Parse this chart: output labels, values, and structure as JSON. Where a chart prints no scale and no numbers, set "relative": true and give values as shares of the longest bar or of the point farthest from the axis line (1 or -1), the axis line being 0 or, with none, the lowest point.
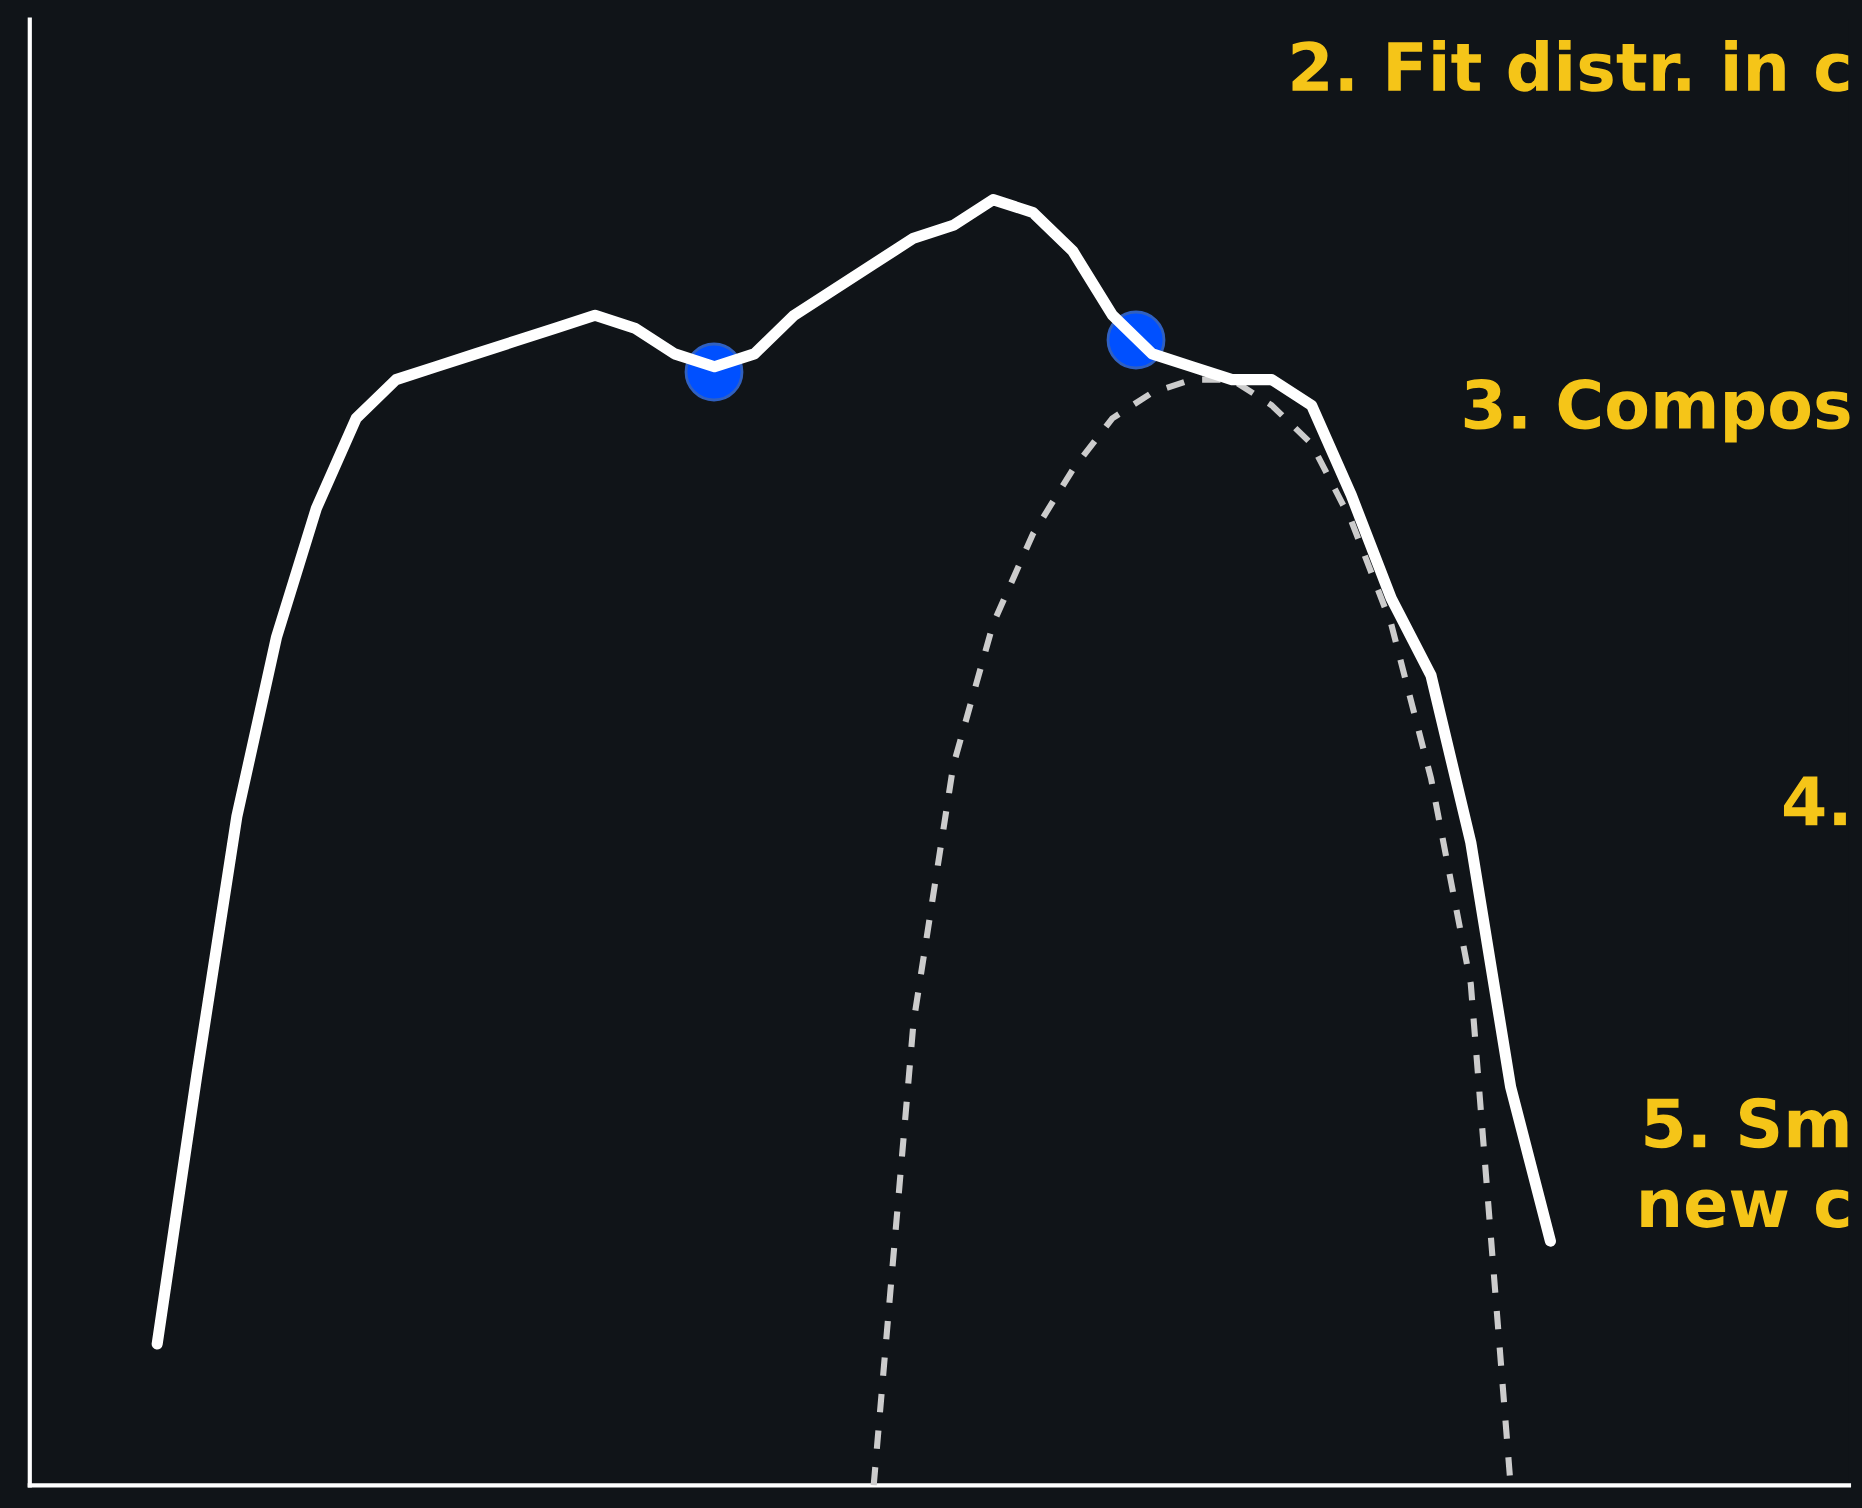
{
  "chart_data": {
    "type": "line",
    "relative": true,
    "annotations": [
      "2. Fit distr. in c",
      "3. Compos",
      "4.",
      "5. Sm\nnew c"
    ],
    "categories": [
      null,
      null,
      null,
      null,
      null,
      null,
      null,
      null,
      null,
      null,
      null,
      null,
      null,
      null,
      null,
      null,
      null,
      null,
      null,
      null,
      null,
      null,
      null,
      null,
      null,
      null,
      null,
      null,
      null,
      null,
      null,
      null,
      null,
      null,
      null,
      null
    ],
    "series": [
      {
        "color": "#ffffff",
        "line_style": "solid",
        "values": [
          0.11,
          0.32,
          0.52,
          0.66,
          0.76,
          0.83,
          0.86,
          0.87,
          0.88,
          0.89,
          0.9,
          0.91,
          0.9,
          0.88,
          0.87,
          0.88,
          0.91,
          0.93,
          0.95,
          0.97,
          0.98,
          1.0,
          0.99,
          0.96,
          0.91,
          0.88,
          0.87,
          0.86,
          0.86,
          0.84,
          0.77,
          0.69,
          0.63,
          0.5,
          0.31,
          0.19
        ]
      },
      {
        "color": "#cccccc",
        "line_style": "dashed",
        "values": [
          null,
          null,
          null,
          null,
          null,
          null,
          null,
          null,
          null,
          null,
          null,
          null,
          null,
          null,
          null,
          null,
          null,
          null,
          0,
          0.36,
          0.56,
          0.67,
          0.74,
          0.79,
          0.83,
          0.85,
          0.86,
          0.86,
          0.84,
          0.81,
          0.75,
          0.67,
          0.55,
          0.39,
          0,
          null
        ]
      }
    ]
  }
}
